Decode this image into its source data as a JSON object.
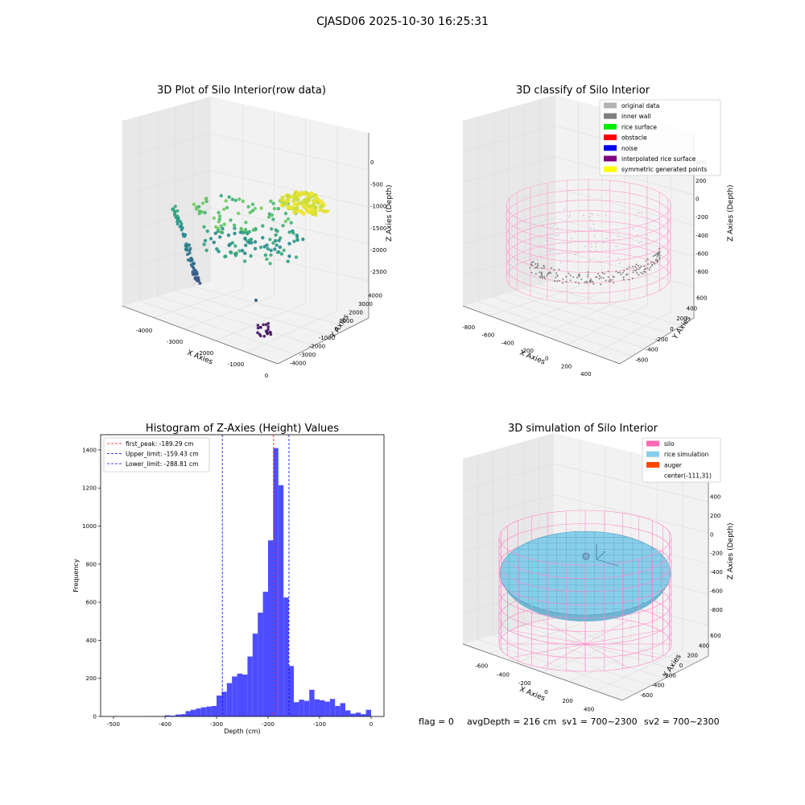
{
  "figure": {
    "suptitle": "CJASD06 2025-10-30 16:25:31"
  },
  "chart_data": [
    {
      "type": "scatter",
      "projection": "3d",
      "title": "3D Plot of Silo Interior(row data)",
      "xlabel": "X Axies",
      "ylabel": "Y Axies",
      "zlabel": "Z Axies (Depth)",
      "xlim": [
        -4400,
        300
      ],
      "ylim": [
        -4400,
        4400
      ],
      "zlim": [
        -2600,
        100
      ],
      "xticks": [
        "-4000",
        "-3000",
        "-2000",
        "-1000",
        "0"
      ],
      "yticks": [
        "4000",
        "3000",
        "2000",
        "1000",
        "0",
        "-1000",
        "-2000",
        "-3000",
        "-4000"
      ],
      "zticks": [
        "0",
        "-500",
        "-1000",
        "-1500",
        "-2000",
        "-2500"
      ],
      "colormap": "viridis",
      "clusters": [
        {
          "x": -1800,
          "y": 2200,
          "z": -700,
          "count": 160
        },
        {
          "x": -2800,
          "y": -1500,
          "z": -1400,
          "count": 60
        },
        {
          "x": -2000,
          "y": 500,
          "z": -1600,
          "count": 90
        },
        {
          "x": -1500,
          "y": -3400,
          "z": -2300,
          "count": 12
        }
      ]
    },
    {
      "type": "scatter",
      "projection": "3d",
      "title": "3D classify of Silo Interior",
      "xlabel": "X Axies",
      "ylabel": "Y Axies",
      "zlabel": "Z Axies (Depth)",
      "xlim": [
        -850,
        500
      ],
      "ylim": [
        -650,
        650
      ],
      "zlim": [
        -900,
        450
      ],
      "xticks": [
        "-800",
        "-600",
        "-400",
        "-200",
        "0",
        "200",
        "400"
      ],
      "yticks": [
        "600",
        "400",
        "200",
        "0",
        "-200",
        "-400",
        "-600"
      ],
      "zticks": [
        "400",
        "200",
        "0",
        "-200",
        "-400",
        "-600",
        "-800"
      ],
      "legend_position": "top-right",
      "legend": [
        {
          "label": "original data",
          "color": "#b3b3b3"
        },
        {
          "label": "inner wall",
          "color": "#808080"
        },
        {
          "label": "rice surface",
          "color": "#00ee00"
        },
        {
          "label": "obstacle",
          "color": "#ff0000"
        },
        {
          "label": "noise",
          "color": "#0000ee"
        },
        {
          "label": "interpolated rice surface",
          "color": "#800080"
        },
        {
          "label": "symmetric generated points",
          "color": "#ffff00"
        }
      ]
    },
    {
      "type": "bar",
      "title": "Histogram of Z-Axies (Height) Values",
      "xlabel": "Depth (cm)",
      "ylabel": "Frequency",
      "xlim": [
        -525,
        25
      ],
      "ylim": [
        0,
        1480
      ],
      "xticks": [
        -500,
        -400,
        -300,
        -200,
        -100,
        0
      ],
      "yticks": [
        0,
        200,
        400,
        600,
        800,
        1000,
        1200,
        1400
      ],
      "bin_width": 10,
      "bin_left_edges": [
        -500,
        -490,
        -480,
        -470,
        -460,
        -450,
        -440,
        -430,
        -420,
        -410,
        -400,
        -390,
        -380,
        -370,
        -360,
        -350,
        -340,
        -330,
        -320,
        -310,
        -300,
        -290,
        -280,
        -270,
        -260,
        -250,
        -240,
        -230,
        -220,
        -210,
        -200,
        -190,
        -180,
        -170,
        -160,
        -150,
        -140,
        -130,
        -120,
        -110,
        -100,
        -90,
        -80,
        -70,
        -60,
        -50,
        -40,
        -30,
        -20,
        -10
      ],
      "values": [
        1,
        0,
        0,
        0,
        1,
        0,
        1,
        1,
        2,
        2,
        6,
        4,
        10,
        12,
        28,
        35,
        42,
        48,
        52,
        55,
        110,
        130,
        175,
        210,
        225,
        220,
        315,
        435,
        545,
        655,
        925,
        1410,
        1215,
        625,
        265,
        75,
        88,
        82,
        140,
        90,
        85,
        78,
        92,
        55,
        70,
        32,
        15,
        20,
        12,
        35
      ],
      "bar_color": "#4d4dff",
      "legend_position": "top-left",
      "lines": [
        {
          "label": "first_peak: -189.29 cm",
          "x": -189.29,
          "color": "#ff0000"
        },
        {
          "label": "Upper_limit: -159.43 cm",
          "x": -159.43,
          "color": "#0000ee"
        },
        {
          "label": "Lower_limit: -288.81 cm",
          "x": -288.81,
          "color": "#0000ee"
        }
      ]
    },
    {
      "type": "surface",
      "projection": "3d",
      "title": "3D simulation of Silo Interior",
      "xlabel": "X Axies",
      "ylabel": "Y Axies",
      "zlabel": "Z Axies (Depth)",
      "xlim": [
        -750,
        500
      ],
      "ylim": [
        -650,
        650
      ],
      "zlim": [
        -900,
        450
      ],
      "xticks": [
        "-600",
        "-400",
        "-200",
        "0",
        "200",
        "400"
      ],
      "yticks": [
        "600",
        "400",
        "200",
        "0",
        "-200",
        "-400",
        "-600"
      ],
      "zticks": [
        "400",
        "200",
        "0",
        "-200",
        "-400",
        "-600",
        "-800"
      ],
      "legend_position": "top-right",
      "legend": [
        {
          "label": "silo",
          "color": "#ff69b4"
        },
        {
          "label": "rice simulation",
          "color": "#87ceeb"
        },
        {
          "label": "auger",
          "color": "#ff4500"
        },
        {
          "label": "center(-111,31)",
          "color": ""
        }
      ]
    }
  ],
  "footer": {
    "flag": "flag = 0",
    "avg_depth": "avgDepth = 216 cm",
    "sv1": "sv1 = 700~2300",
    "sv2": "sv2 = 700~2300"
  }
}
